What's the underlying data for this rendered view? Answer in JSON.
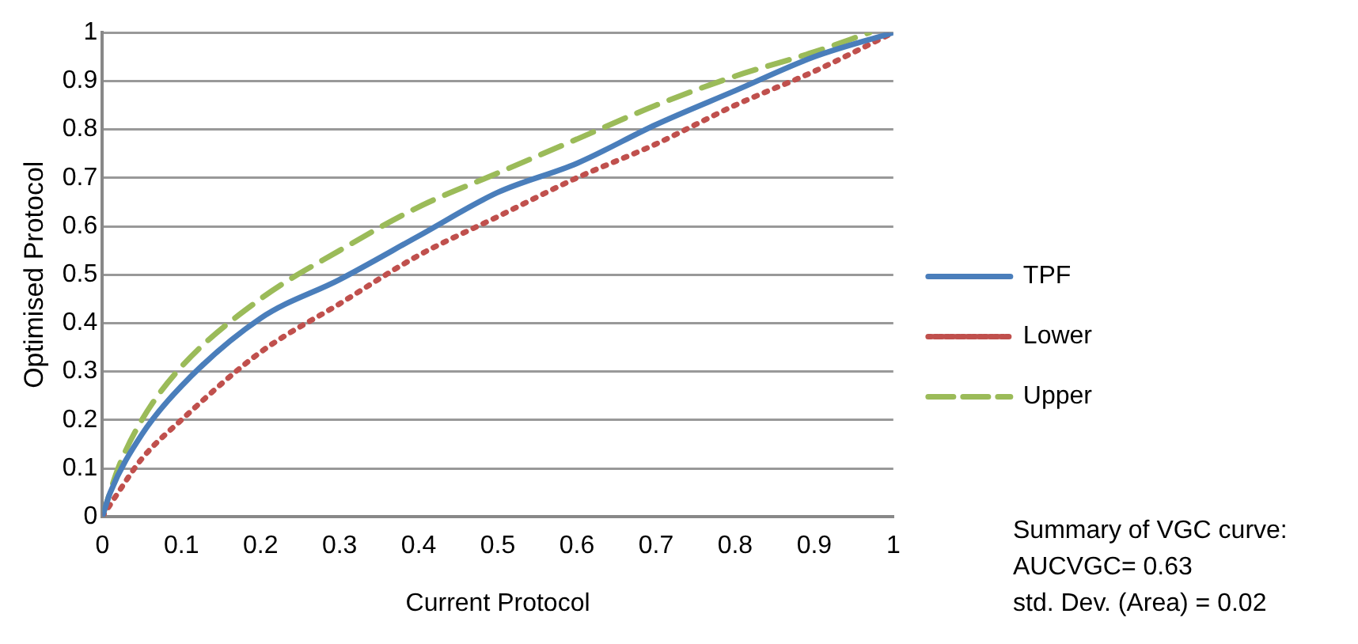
{
  "chart_data": {
    "type": "line",
    "xlabel": "Current Protocol",
    "ylabel": "Optimised Protocol",
    "xlim": [
      0,
      1
    ],
    "xticks": [
      0,
      0.1,
      0.2,
      0.3,
      0.4,
      0.5,
      0.6,
      0.7,
      0.8,
      0.9,
      1
    ],
    "ylim": [
      0,
      1
    ],
    "yticks": [
      0,
      0.1,
      0.2,
      0.3,
      0.4,
      0.5,
      0.6,
      0.7,
      0.8,
      0.9,
      1
    ],
    "grid": "y",
    "legend": "right",
    "marker": "none",
    "series": [
      {
        "name": "TPF",
        "color": "#4a7ebb",
        "line_style": "solid",
        "x": [
          0,
          0.01,
          0.05,
          0.1,
          0.2,
          0.3,
          0.4,
          0.5,
          0.6,
          0.7,
          0.8,
          0.9,
          1
        ],
        "values": [
          0,
          0.05,
          0.17,
          0.27,
          0.41,
          0.49,
          0.58,
          0.67,
          0.73,
          0.81,
          0.88,
          0.95,
          1
        ]
      },
      {
        "name": "Lower",
        "color": "#c0504d",
        "line_style": "dotted",
        "x": [
          0,
          0.02,
          0.05,
          0.1,
          0.2,
          0.3,
          0.4,
          0.5,
          0.6,
          0.7,
          0.8,
          0.9,
          1
        ],
        "values": [
          0,
          0.05,
          0.12,
          0.2,
          0.34,
          0.44,
          0.54,
          0.62,
          0.7,
          0.77,
          0.85,
          0.92,
          1
        ]
      },
      {
        "name": "Upper",
        "color": "#9bbb59",
        "line_style": "dashed",
        "x": [
          0,
          0.02,
          0.05,
          0.1,
          0.2,
          0.3,
          0.4,
          0.5,
          0.6,
          0.7,
          0.8,
          0.9,
          0.97
        ],
        "values": [
          0,
          0.1,
          0.2,
          0.31,
          0.45,
          0.55,
          0.64,
          0.71,
          0.78,
          0.85,
          0.91,
          0.96,
          1
        ]
      }
    ],
    "annotations": [
      "Summary of VGC curve:",
      "AUCVGC= 0.63",
      "std. Dev. (Area) = 0.02"
    ]
  }
}
